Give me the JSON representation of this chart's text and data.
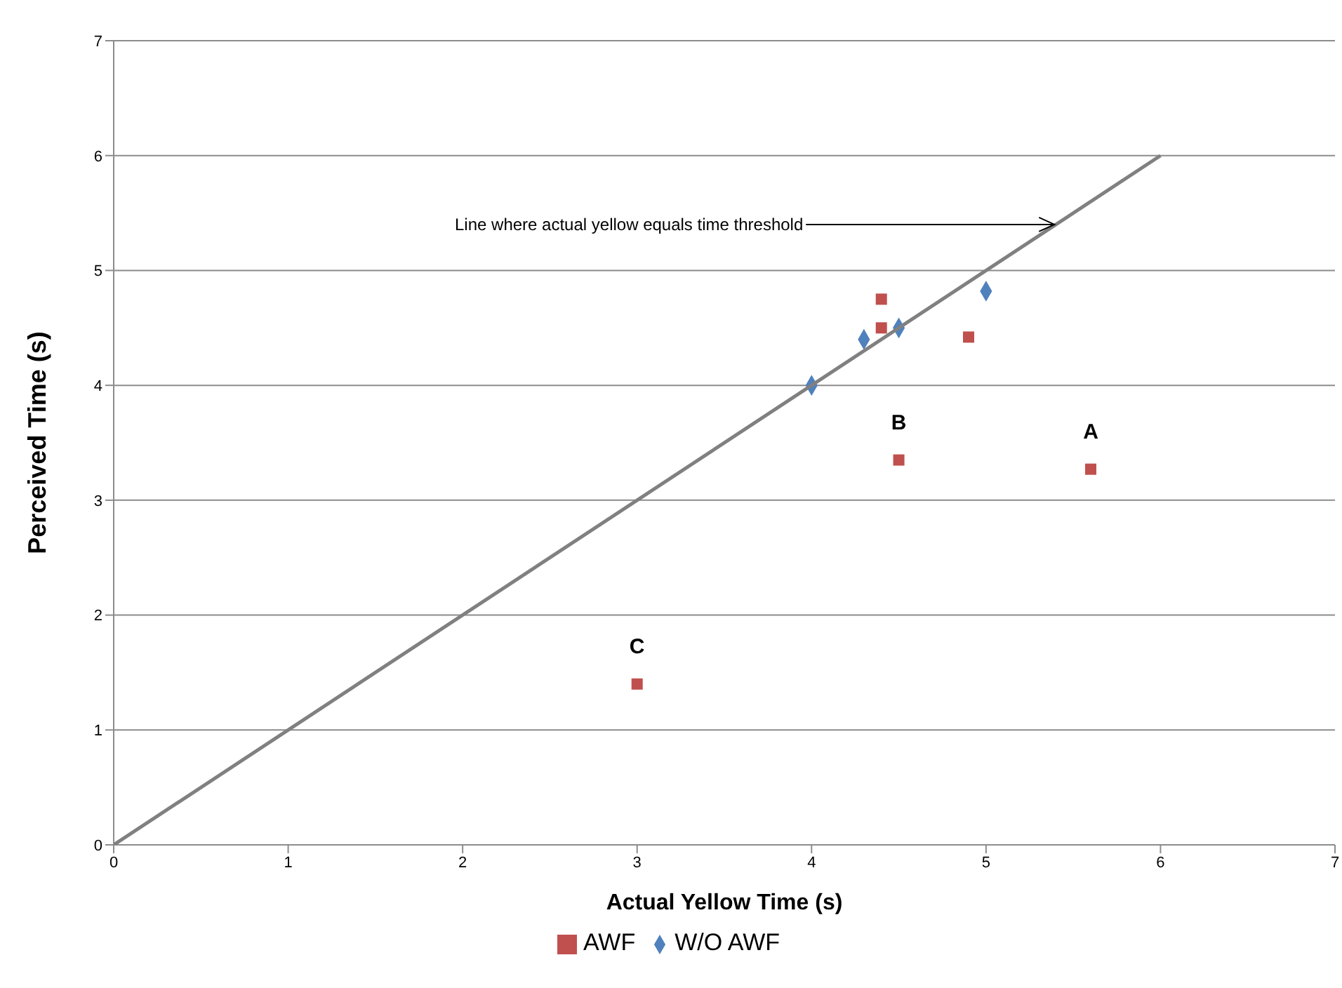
{
  "chart_data": {
    "type": "scatter",
    "xlabel": "Actual Yellow Time (s)",
    "ylabel": "Perceived Time (s)",
    "xlim": [
      0,
      7
    ],
    "xticks": [
      0,
      1,
      2,
      3,
      4,
      5,
      6,
      7
    ],
    "ylim": [
      0,
      7
    ],
    "yticks": [
      0,
      1,
      2,
      3,
      4,
      5,
      6,
      7
    ],
    "grid": "y",
    "legend": "bottom",
    "series": [
      {
        "name": "AWF",
        "color": "#c0504d",
        "marker": "square",
        "x": [
          4.4,
          4.4,
          4.5,
          4.9,
          5.6,
          3.0
        ],
        "values": [
          4.75,
          4.5,
          3.35,
          4.42,
          3.27,
          1.4
        ]
      },
      {
        "name": "W/O AWF",
        "color": "#4f81bd",
        "marker": "diamond",
        "x": [
          4.0,
          4.3,
          4.5,
          5.0
        ],
        "values": [
          4.0,
          4.4,
          4.5,
          4.82
        ]
      },
      {
        "type": "line",
        "color": "#808080",
        "marker": "none",
        "x": [
          0,
          6
        ],
        "values": [
          0,
          6
        ]
      }
    ],
    "annotations": [
      {
        "text": "A",
        "x": 5.6,
        "y": 3.27
      },
      {
        "text": "B",
        "x": 4.5,
        "y": 3.35
      },
      {
        "text": "C",
        "x": 3.0,
        "y": 1.4
      },
      {
        "text": "Line where actual yellow equals time threshold",
        "x": 5.4,
        "y": 5.4
      }
    ]
  }
}
